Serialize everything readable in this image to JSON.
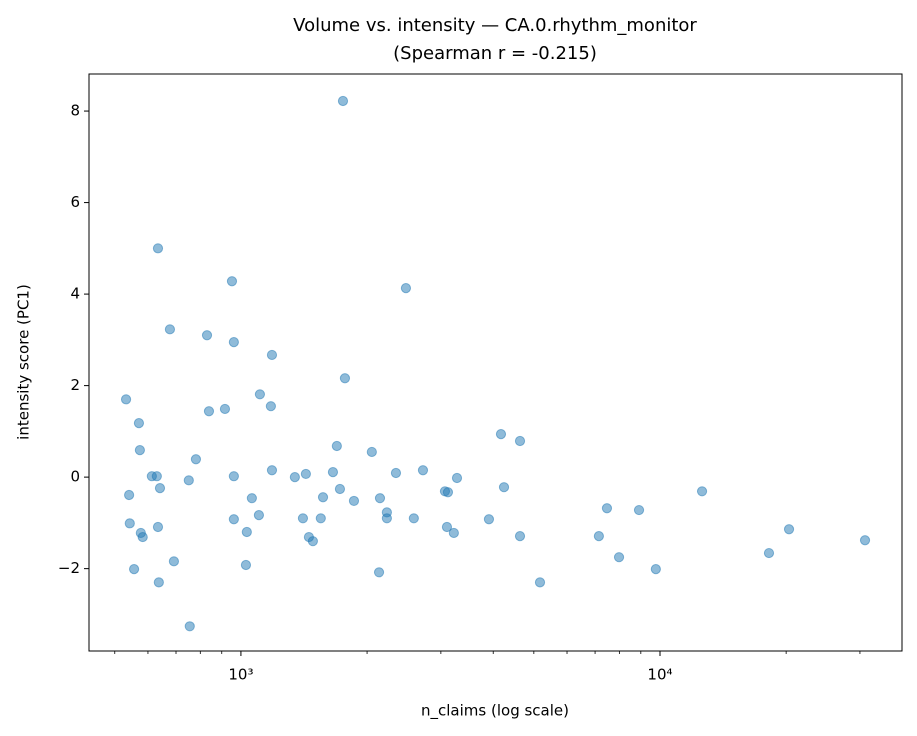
{
  "chart_data": {
    "type": "scatter",
    "title": [
      "Volume vs. intensity — CA.0.rhythm_monitor",
      "(Spearman r = -0.215)"
    ],
    "xlabel": "n_claims (log scale)",
    "ylabel": "intensity score (PC1)",
    "xscale": "log",
    "color": "#1f77b4",
    "alpha": 0.5,
    "xlim": [
      434,
      37800
    ],
    "ylim": [
      -3.8,
      8.81
    ],
    "xticks": [
      {
        "value": 1000,
        "label": "10³"
      },
      {
        "value": 10000,
        "label": "10⁴"
      }
    ],
    "xminorticks": [
      500,
      600,
      700,
      800,
      900,
      2000,
      3000,
      4000,
      5000,
      6000,
      7000,
      8000,
      9000,
      20000,
      30000
    ],
    "yticks": [
      {
        "value": -2,
        "label": "−2"
      },
      0,
      2,
      4,
      6,
      8
    ],
    "x": [
      1752,
      634,
      952,
      2476,
      677,
      830,
      962,
      1186,
      1771,
      1110,
      532,
      1179,
      916,
      839,
      571,
      4174,
      4634,
      1694,
      574,
      2053,
      781,
      1186,
      2719,
      1658,
      2344,
      1429,
      613,
      630,
      962,
      1345,
      3278,
      751,
      1723,
      4244,
      641,
      12600,
      3068,
      3119,
      541,
      1570,
      2147,
      1062,
      1861,
      7472,
      8912,
      2230,
      1104,
      1406,
      1551,
      2230,
      2586,
      3907,
      962,
      543,
      634,
      3102,
      20320,
      1033,
      577,
      3222,
      4634,
      7148,
      1453,
      583,
      1485,
      30850,
      18200,
      7985,
      692,
      1028,
      556,
      9775,
      2136,
      637,
      5172,
      755
    ],
    "y": [
      8.22,
      5.0,
      4.28,
      4.13,
      3.23,
      3.1,
      2.95,
      2.67,
      2.16,
      1.81,
      1.7,
      1.55,
      1.49,
      1.44,
      1.18,
      0.94,
      0.79,
      0.68,
      0.59,
      0.55,
      0.39,
      0.15,
      0.15,
      0.11,
      0.09,
      0.07,
      0.02,
      0.02,
      0.02,
      0.0,
      -0.02,
      -0.07,
      -0.26,
      -0.22,
      -0.24,
      -0.31,
      -0.31,
      -0.33,
      -0.39,
      -0.44,
      -0.46,
      -0.46,
      -0.52,
      -0.68,
      -0.72,
      -0.77,
      -0.83,
      -0.9,
      -0.9,
      -0.9,
      -0.9,
      -0.92,
      -0.92,
      -1.01,
      -1.09,
      -1.09,
      -1.14,
      -1.2,
      -1.22,
      -1.22,
      -1.29,
      -1.29,
      -1.31,
      -1.31,
      -1.4,
      -1.38,
      -1.66,
      -1.75,
      -1.84,
      -1.92,
      -2.01,
      -2.01,
      -2.08,
      -2.3,
      -2.3,
      -3.26
    ]
  }
}
